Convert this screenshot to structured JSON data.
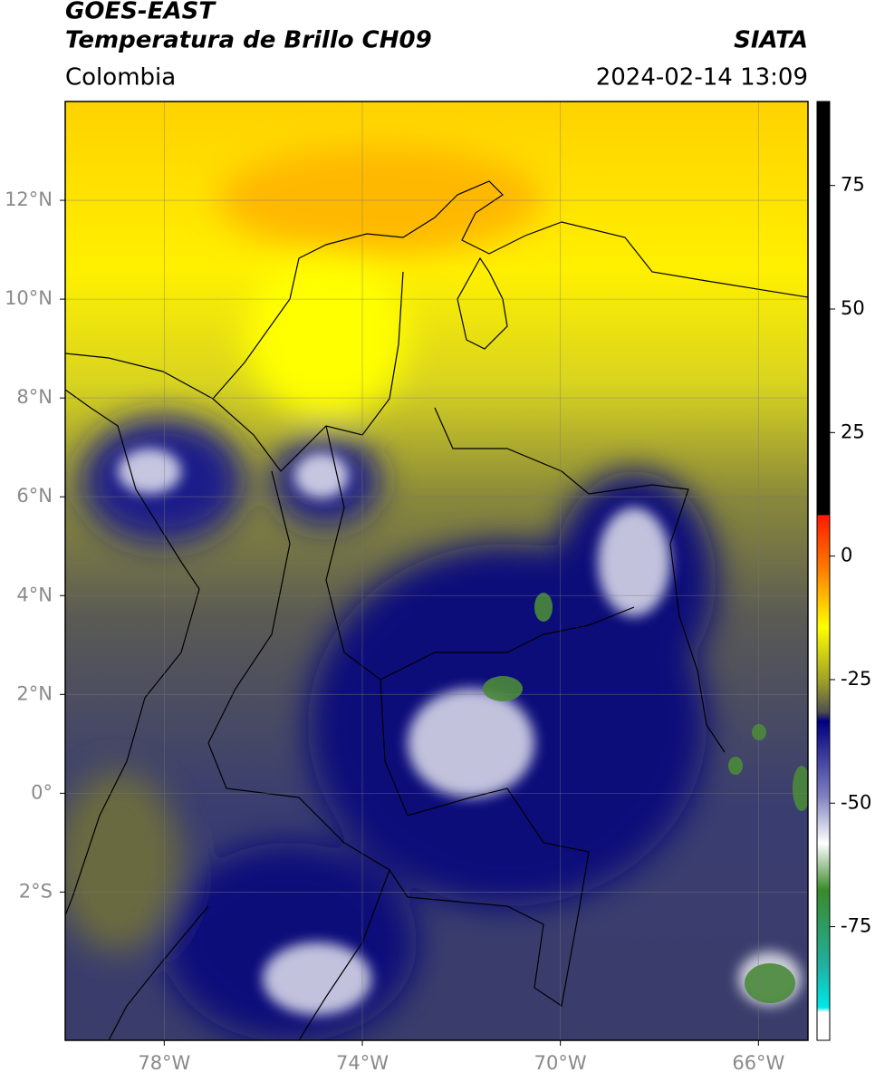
{
  "header": {
    "satellite": "GOES-EAST",
    "product": "Temperatura de Brillo CH09",
    "region": "Colombia",
    "source": "SIATA",
    "datetime": "2024-02-14 13:09"
  },
  "map": {
    "xlim": [
      -80,
      -65
    ],
    "ylim": [
      -5,
      14
    ],
    "xticks": [
      {
        "value": -78,
        "label": "78°W"
      },
      {
        "value": -74,
        "label": "74°W"
      },
      {
        "value": -70,
        "label": "70°W"
      },
      {
        "value": -66,
        "label": "66°W"
      }
    ],
    "yticks": [
      {
        "value": 12,
        "label": "12°N"
      },
      {
        "value": 10,
        "label": "10°N"
      },
      {
        "value": 8,
        "label": "8°N"
      },
      {
        "value": 6,
        "label": "6°N"
      },
      {
        "value": 4,
        "label": "4°N"
      },
      {
        "value": 2,
        "label": "2°N"
      },
      {
        "value": 0,
        "label": "0°"
      },
      {
        "value": -2,
        "label": "2°S"
      }
    ],
    "grid": true
  },
  "colorbar": {
    "clim": [
      -98,
      92
    ],
    "ticks": [
      75,
      50,
      25,
      0,
      -25,
      -50,
      -75
    ]
  }
}
